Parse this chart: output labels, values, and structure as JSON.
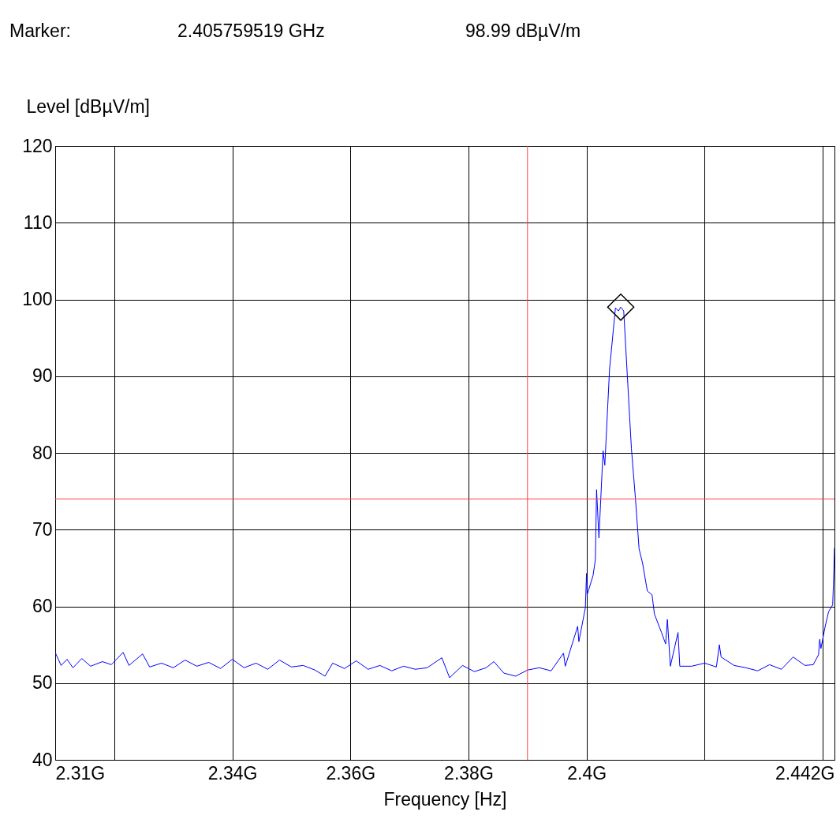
{
  "chart_data": {
    "type": "line",
    "xlabel": "Frequency [Hz]",
    "ylabel": "Level [dBµV/m]",
    "annotations": [
      "Marker:",
      "2.405759519 GHz",
      "98.99 dBµV/m"
    ],
    "xlim": [
      2.31,
      2.442
    ],
    "xticks": [
      {
        "value": 2.31,
        "label": "2.31G"
      },
      {
        "value": 2.32,
        "label": null
      },
      {
        "value": 2.34,
        "label": "2.34G"
      },
      {
        "value": 2.36,
        "label": "2.36G"
      },
      {
        "value": 2.38,
        "label": "2.38G"
      },
      {
        "value": 2.4,
        "label": "2.4G"
      },
      {
        "value": 2.42,
        "label": null
      },
      {
        "value": 2.44,
        "label": null
      },
      {
        "value": 2.442,
        "label": "2.442G"
      }
    ],
    "ylim": [
      40,
      120
    ],
    "yticks": [
      40,
      50,
      60,
      70,
      80,
      90,
      100,
      110,
      120
    ],
    "grid": true,
    "ref_lines": [
      {
        "axis": "x",
        "value": 2.39,
        "label": null,
        "color": "#ff4040"
      },
      {
        "axis": "y",
        "value": 74,
        "label": null,
        "color": "#ff4040"
      }
    ],
    "series": [
      {
        "color": "#0000ff",
        "x": [
          2.31,
          2.311,
          2.312,
          2.313,
          2.3145,
          2.316,
          2.318,
          2.3195,
          2.3215,
          2.3225,
          2.3248,
          2.326,
          2.328,
          2.33,
          2.332,
          2.334,
          2.336,
          2.338,
          2.34,
          2.342,
          2.344,
          2.346,
          2.348,
          2.35,
          2.352,
          2.354,
          2.3557,
          2.357,
          2.359,
          2.361,
          2.363,
          2.365,
          2.367,
          2.369,
          2.371,
          2.373,
          2.3755,
          2.3768,
          2.379,
          2.381,
          2.383,
          2.3843,
          2.386,
          2.388,
          2.39,
          2.392,
          2.394,
          2.3961,
          2.3964,
          2.3985,
          2.3987,
          2.3998,
          2.4,
          2.4001,
          2.4011,
          2.4015,
          2.4017,
          2.4021,
          2.4028,
          2.4031,
          2.4039,
          2.4049,
          2.4054,
          2.4058,
          2.4063,
          2.4069,
          2.4076,
          2.4083,
          2.4089,
          2.4095,
          2.4103,
          2.4111,
          2.4115,
          2.4127,
          2.4134,
          2.4137,
          2.4142,
          2.4155,
          2.4158,
          2.4178,
          2.42,
          2.422,
          2.4225,
          2.4228,
          2.425,
          2.427,
          2.429,
          2.431,
          2.433,
          2.435,
          2.437,
          2.4384,
          2.4393,
          2.4395,
          2.4397,
          2.4404,
          2.441,
          2.4417,
          2.4419,
          2.442
        ],
        "values": [
          54.0,
          52.3,
          53.1,
          52.0,
          53.2,
          52.2,
          52.8,
          52.4,
          54.0,
          52.3,
          53.8,
          52.1,
          52.6,
          52.0,
          53.0,
          52.2,
          52.7,
          51.9,
          53.1,
          52.0,
          52.6,
          51.8,
          53.0,
          52.1,
          52.3,
          51.7,
          50.9,
          52.6,
          51.9,
          52.9,
          51.8,
          52.3,
          51.6,
          52.2,
          51.8,
          52.0,
          53.3,
          50.7,
          52.3,
          51.5,
          52.0,
          52.8,
          51.3,
          50.9,
          51.7,
          52.0,
          51.6,
          53.9,
          52.2,
          57.4,
          55.4,
          59.8,
          64.3,
          61.5,
          64.0,
          66.1,
          75.2,
          68.9,
          80.3,
          78.4,
          90.9,
          98.9,
          98.5,
          99.0,
          98.5,
          90.2,
          80.6,
          73.9,
          67.5,
          65.6,
          62.0,
          61.5,
          59.0,
          56.6,
          55.1,
          58.3,
          52.2,
          56.6,
          52.2,
          52.2,
          52.6,
          52.1,
          55.0,
          53.4,
          52.3,
          52.0,
          51.6,
          52.4,
          51.8,
          53.4,
          52.3,
          52.4,
          53.7,
          55.7,
          54.5,
          57.3,
          59.3,
          60.2,
          64.7,
          67.6
        ]
      },
      {
        "type": "scatter",
        "color": "#000000",
        "marker": "diamond",
        "x": [
          2.4058
        ],
        "values": [
          98.99
        ]
      }
    ]
  }
}
